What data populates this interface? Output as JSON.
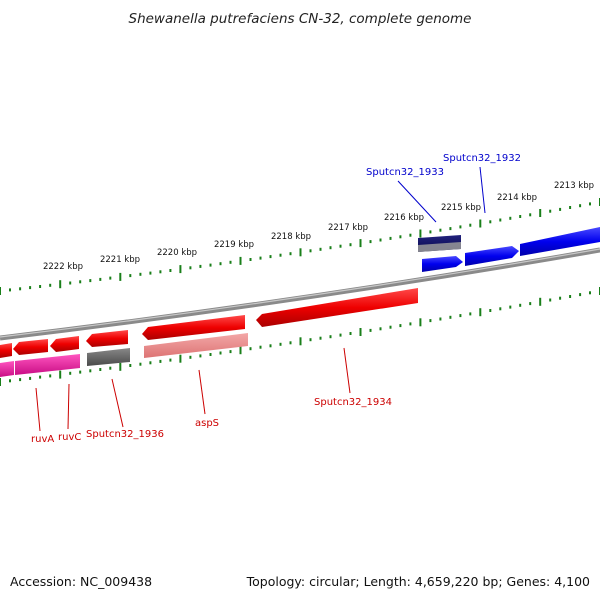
{
  "title": "Shewanella putrefaciens CN-32, complete genome",
  "footer": {
    "accession": "Accession: NC_009438",
    "topology": "Topology: circular; Length: 4,659,220 bp; Genes: 4,100"
  },
  "colors": {
    "forward_gene": "#0000ee",
    "forward_gene_dark": "#0a0a6a",
    "reverse_gene": "#ee0000",
    "reverse_gene_light": "#ee8888",
    "pseudo_gene": "#666666",
    "magenta_gene": "#ee1199",
    "ruler": "#1a7f1a",
    "backbone": "#8a8a8a",
    "forward_label": "#0000cc",
    "reverse_label": "#cc0000"
  },
  "ruler_labels": [
    "2222 kbp",
    "2221 kbp",
    "2220 kbp",
    "2219 kbp",
    "2218 kbp",
    "2217 kbp",
    "2216 kbp",
    "2215 kbp",
    "2214 kbp",
    "2213 kbp"
  ],
  "gene_labels": {
    "forward": [
      "Sputcn32_1933",
      "Sputcn32_1932"
    ],
    "reverse": [
      "ruvA",
      "ruvC",
      "Sputcn32_1936",
      "aspS",
      "Sputcn32_1934"
    ]
  }
}
